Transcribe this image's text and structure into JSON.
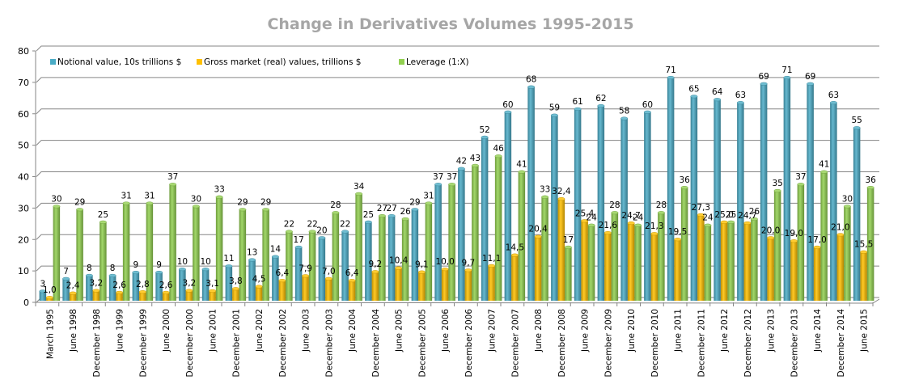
{
  "chart_data": {
    "type": "bar",
    "title": "Change in Derivatives Volumes 1995-2015",
    "xlabel": "",
    "ylabel": "",
    "ylim": [
      0,
      80
    ],
    "yticks": [
      0,
      10,
      20,
      30,
      40,
      50,
      60,
      70,
      80
    ],
    "grid": true,
    "legend_position": "top-left",
    "categories": [
      "March 1995",
      "June 1998",
      "December 1998",
      "June 1999",
      "December 1999",
      "June 2000",
      "December 2000",
      "June 2001",
      "December 2001",
      "June 2002",
      "December 2002",
      "June 2003",
      "December 2003",
      "June 2004",
      "December 2004",
      "June 2005",
      "December 2005",
      "June 2006",
      "December 2006",
      "June 2007",
      "December 2007",
      "June 2008",
      "December 2008",
      "June 2009",
      "December 2009",
      "June 2010",
      "December 2010",
      "June 2011",
      "December 2011",
      "June 2012",
      "December 2012",
      "June 2013",
      "December 2013",
      "June 2014",
      "December 2014",
      "June 2015"
    ],
    "series": [
      {
        "name": "Notional value, 10s trillions $",
        "color": "#4bacc6",
        "values": [
          3,
          7,
          8,
          8,
          9,
          9,
          10,
          10,
          11,
          13,
          14,
          17,
          20,
          22,
          25,
          27,
          29,
          37,
          42,
          52,
          60,
          68,
          59,
          61,
          62,
          58,
          60,
          71,
          65,
          64,
          63,
          69,
          71,
          69,
          63,
          55
        ],
        "labels": [
          "3",
          "7",
          "8",
          "8",
          "9",
          "9",
          "10",
          "10",
          "11",
          "13",
          "14",
          "17",
          "20",
          "22",
          "25",
          "27",
          "29",
          "37",
          "42",
          "52",
          "60",
          "68",
          "59",
          "61",
          "62",
          "58",
          "60",
          "71",
          "65",
          "64",
          "63",
          "69",
          "71",
          "69",
          "63",
          "55"
        ]
      },
      {
        "name": "Gross market (real) values, trillions $",
        "color": "#ffc000",
        "values": [
          1.0,
          2.4,
          3.2,
          2.6,
          2.8,
          2.6,
          3.2,
          3.1,
          3.8,
          4.5,
          6.4,
          7.9,
          7.0,
          6.4,
          9.2,
          10.4,
          9.1,
          10.0,
          9.7,
          11.1,
          14.5,
          20.4,
          32.4,
          25.4,
          21.6,
          24.7,
          21.3,
          19.5,
          27.3,
          25.0,
          24.7,
          20.0,
          19.0,
          17.0,
          21.0,
          15.5
        ],
        "labels": [
          "1,0",
          "2,4",
          "3,2",
          "2,6",
          "2,8",
          "2,6",
          "3,2",
          "3,1",
          "3,8",
          "4,5",
          "6,4",
          "7,9",
          "7,0",
          "6,4",
          "9,2",
          "10,4",
          "9,1",
          "10,0",
          "9,7",
          "11,1",
          "14,5",
          "20,4",
          "32,4",
          "25,4",
          "21,6",
          "24,7",
          "21,3",
          "19,5",
          "27,3",
          "25,0",
          "24,7",
          "20,0",
          "19,0",
          "17,0",
          "21,0",
          "15,5"
        ]
      },
      {
        "name": "Leverage (1:X)",
        "color": "#92d050",
        "values": [
          30,
          29,
          25,
          31,
          31,
          37,
          30,
          33,
          29,
          29,
          22,
          22,
          28,
          34,
          27,
          26,
          31,
          37,
          43,
          46,
          41,
          33,
          17,
          24,
          28,
          24,
          28,
          36,
          24,
          25,
          26,
          35,
          37,
          41,
          30,
          36
        ],
        "labels": [
          "30",
          "29",
          "25",
          "31",
          "31",
          "37",
          "30",
          "33",
          "29",
          "29",
          "22",
          "22",
          "28",
          "34",
          "27",
          "26",
          "31",
          "37",
          "43",
          "46",
          "41",
          "33",
          "17",
          "24",
          "28",
          "24",
          "28",
          "36",
          "24",
          "25",
          "26",
          "35",
          "37",
          "41",
          "30",
          "36"
        ]
      }
    ]
  }
}
